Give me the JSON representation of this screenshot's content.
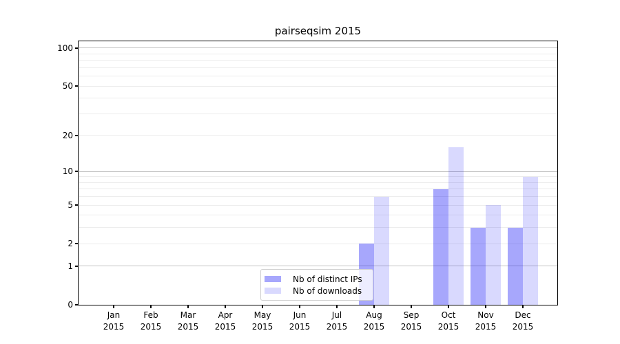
{
  "chart_data": {
    "type": "bar",
    "title": "pairseqsim 2015",
    "categories": [
      "Jan",
      "Feb",
      "Mar",
      "Apr",
      "May",
      "Jun",
      "Jul",
      "Aug",
      "Sep",
      "Oct",
      "Nov",
      "Dec"
    ],
    "category_year_label": "2015",
    "series": [
      {
        "name": "Nb of distinct IPs",
        "color": "rgba(0,0,245,0.345)",
        "values": [
          0,
          0,
          0,
          0,
          0,
          0,
          0,
          2,
          0,
          7,
          3,
          3
        ]
      },
      {
        "name": "Nb of downloads",
        "color": "rgba(0,0,245,0.15)",
        "values": [
          0,
          0,
          0,
          0,
          0,
          0,
          0,
          6,
          0,
          16,
          5,
          9
        ]
      }
    ],
    "y_scale": "log1p (position proportional to log10(1+v))",
    "ylim": [
      0,
      115
    ],
    "y_tick_values": [
      0,
      1,
      2,
      5,
      10,
      20,
      50,
      100
    ],
    "y_tick_labels": [
      "0",
      "1",
      "2",
      "5",
      "10",
      "20",
      "50",
      "100"
    ],
    "y_major_gridlines": [
      1,
      10,
      100
    ],
    "y_minor_gridlines": [
      2,
      3,
      4,
      5,
      6,
      7,
      8,
      9,
      20,
      30,
      40,
      50,
      60,
      70,
      80,
      90
    ],
    "grid": true,
    "legend_location": "lower center"
  },
  "colors": {
    "background": "#ffffff",
    "spine": "#000000",
    "major_grid": "#c2c2c2",
    "minor_grid": "#ececec",
    "text": "#000000",
    "legend_border": "#cfcfcf"
  }
}
